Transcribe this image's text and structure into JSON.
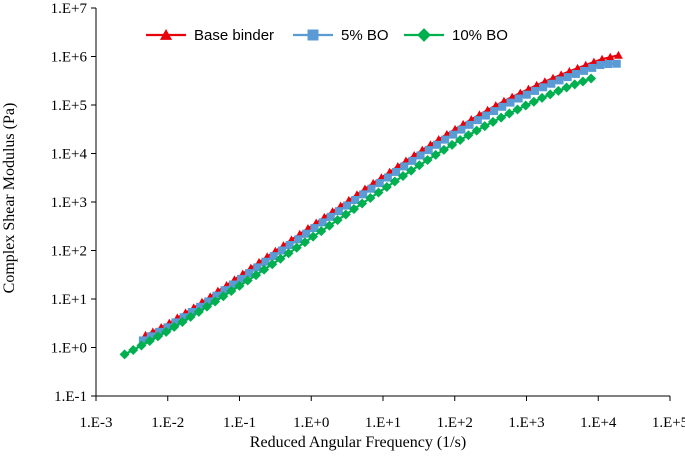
{
  "chart_data": {
    "type": "scatter",
    "title": "",
    "xlabel": "Reduced Angular Frequency (1/s)",
    "ylabel": "Complex Shear Modulus (Pa)",
    "x_scale": "log",
    "y_scale": "log",
    "xlim": [
      0.001,
      100000
    ],
    "ylim": [
      0.1,
      10000000
    ],
    "x_ticks": [
      0.001,
      0.01,
      0.1,
      1,
      10,
      100,
      1000,
      10000,
      100000
    ],
    "x_tick_labels": [
      "1.E-3",
      "1.E-2",
      "1.E-1",
      "1.E+0",
      "1.E+1",
      "1.E+2",
      "1.E+3",
      "1.E+4",
      "1.E+5"
    ],
    "y_ticks": [
      0.1,
      1,
      10,
      100,
      1000,
      10000,
      100000,
      1000000,
      10000000
    ],
    "y_tick_labels": [
      "1.E-1",
      "1.E+0",
      "1.E+1",
      "1.E+2",
      "1.E+3",
      "1.E+4",
      "1.E+5",
      "1.E+6",
      "1.E+7"
    ],
    "grid": false,
    "legend_position": "top",
    "series": [
      {
        "name": "Base binder",
        "color": "#e8000b",
        "marker": "triangle",
        "x": [
          0.0049,
          0.0062,
          0.0081,
          0.0105,
          0.0136,
          0.0177,
          0.023,
          0.03,
          0.039,
          0.05,
          0.066,
          0.085,
          0.111,
          0.144,
          0.187,
          0.243,
          0.316,
          0.41,
          0.53,
          0.69,
          0.9,
          1.17,
          1.52,
          1.98,
          2.57,
          3.34,
          4.34,
          5.6,
          7.3,
          9.5,
          12.4,
          16.1,
          20.9,
          27.2,
          35.3,
          45.9,
          59.7,
          77.6,
          101,
          131,
          170,
          221,
          287,
          373,
          485,
          631,
          820,
          1066,
          1386,
          1802,
          2342,
          3045,
          3958,
          5146,
          6690,
          8697,
          11306,
          14698,
          19107
        ],
        "y": [
          1.8,
          2.1,
          2.6,
          3.2,
          4.1,
          5.2,
          6.6,
          8.6,
          11.1,
          14.6,
          19.1,
          25,
          32.9,
          43.5,
          57.1,
          74.5,
          97,
          127,
          166,
          217,
          285,
          370,
          484,
          635,
          830,
          1085,
          1420,
          1860,
          2430,
          3180,
          4150,
          5420,
          7050,
          9140,
          11800,
          15200,
          19500,
          24900,
          31600,
          40000,
          50300,
          63100,
          78500,
          97300,
          119800,
          146000,
          177000,
          213000,
          255000,
          303000,
          358000,
          421000,
          492000,
          573000,
          664000,
          767000,
          880000,
          970000,
          1060000
        ]
      },
      {
        "name": "5% BO",
        "color": "#5b9bd5",
        "marker": "square",
        "x": [
          0.0045,
          0.0058,
          0.0076,
          0.0099,
          0.0128,
          0.0167,
          0.0217,
          0.0282,
          0.0367,
          0.0477,
          0.062,
          0.081,
          0.105,
          0.136,
          0.177,
          0.23,
          0.3,
          0.39,
          0.5,
          0.66,
          0.85,
          1.11,
          1.44,
          1.87,
          2.43,
          3.16,
          4.1,
          5.3,
          6.9,
          9.0,
          11.7,
          15.2,
          19.8,
          25.7,
          33.4,
          43.4,
          56.5,
          73.4,
          95.4,
          124,
          161,
          210,
          272,
          354,
          460,
          598,
          778,
          1011,
          1314,
          1709,
          2221,
          2888,
          3754,
          4880,
          6344,
          8248,
          10722,
          13938,
          18120
        ],
        "y": [
          1.4,
          1.7,
          2.1,
          2.6,
          3.3,
          4.2,
          5.4,
          6.9,
          8.9,
          11.7,
          15.2,
          19.9,
          26,
          34.2,
          44.9,
          58.7,
          76.5,
          100,
          130,
          170,
          222,
          290,
          380,
          495,
          647,
          845,
          1100,
          1440,
          1880,
          2450,
          3200,
          4170,
          5420,
          7040,
          9120,
          11750,
          15100,
          19300,
          24500,
          31000,
          39000,
          48800,
          60600,
          74900,
          91900,
          112000,
          136000,
          163000,
          195000,
          232000,
          274000,
          322000,
          376000,
          437000,
          505000,
          582000,
          668000,
          700000,
          710000
        ]
      },
      {
        "name": "10% BO",
        "color": "#00b050",
        "marker": "diamond",
        "x": [
          0.0025,
          0.0033,
          0.0043,
          0.0056,
          0.0073,
          0.0095,
          0.0123,
          0.016,
          0.0208,
          0.0271,
          0.0352,
          0.0458,
          0.0595,
          0.077,
          0.1,
          0.13,
          0.17,
          0.22,
          0.286,
          0.372,
          0.483,
          0.628,
          0.816,
          1.06,
          1.38,
          1.79,
          2.33,
          3.03,
          3.94,
          5.12,
          6.66,
          8.66,
          11.3,
          14.6,
          19.0,
          24.7,
          32.1,
          41.8,
          54.3,
          70.6,
          91.8,
          119,
          155,
          202,
          262,
          341,
          443,
          576,
          749,
          974,
          1266,
          1646,
          2140,
          2782,
          3616,
          4701,
          6111,
          7945
        ],
        "y": [
          0.72,
          0.89,
          1.1,
          1.36,
          1.7,
          2.1,
          2.66,
          3.36,
          4.27,
          5.44,
          6.96,
          8.9,
          11.4,
          14.6,
          18.7,
          24,
          31.1,
          40.3,
          52.2,
          67.6,
          87.8,
          114,
          148,
          193,
          251,
          326,
          424,
          551,
          716,
          931,
          1210,
          1570,
          2040,
          2650,
          3430,
          4430,
          5710,
          7330,
          9370,
          11900,
          15100,
          19000,
          23800,
          29600,
          36600,
          45000,
          55000,
          66900,
          81000,
          97700,
          117000,
          140000,
          166000,
          196000,
          229000,
          266000,
          306000,
          352000
        ]
      }
    ]
  }
}
